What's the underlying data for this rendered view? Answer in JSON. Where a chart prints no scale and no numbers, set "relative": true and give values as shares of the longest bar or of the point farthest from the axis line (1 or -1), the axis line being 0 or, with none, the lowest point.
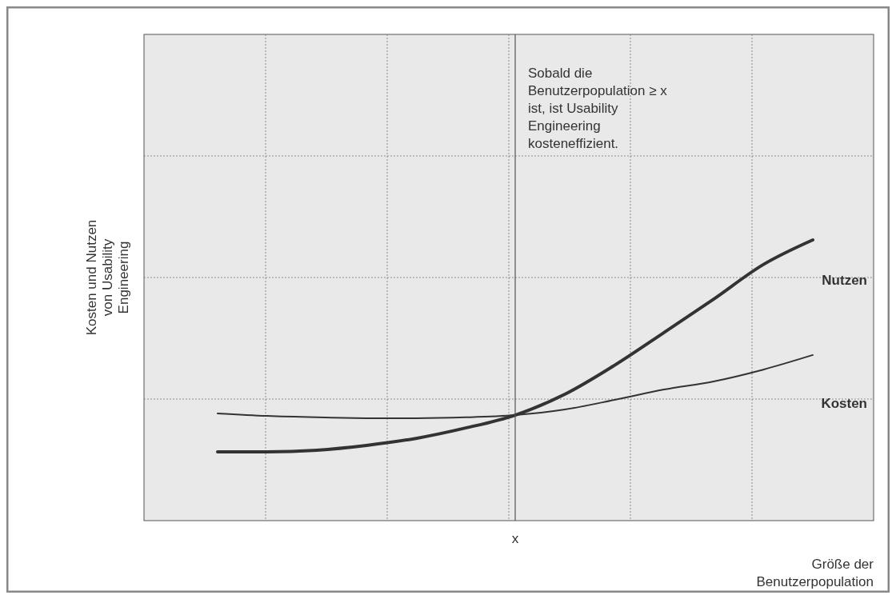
{
  "chart_data": {
    "type": "line",
    "relative": true,
    "xlabel": "Größe der Benutzerpopulation",
    "ylabel": "Kosten und Nutzen von Usability Engineering",
    "categories": [
      null,
      null,
      null,
      null,
      null,
      null,
      null,
      null,
      null,
      null,
      null,
      null,
      null
    ],
    "series": [
      {
        "name": "Nutzen",
        "color": "#333333",
        "values": [
          0.245,
          0.245,
          0.251,
          0.268,
          0.293,
          0.33,
          0.376,
          0.45,
          0.553,
          0.67,
          0.789,
          0.912,
          1
        ]
      },
      {
        "name": "Kosten",
        "color": "#333333",
        "values": [
          0.382,
          0.373,
          0.368,
          0.365,
          0.365,
          0.368,
          0.376,
          0.396,
          0.43,
          0.467,
          0.496,
          0.538,
          0.59
        ]
      }
    ],
    "annotations": [
      "Sobald die Benutzerpopulation ≥ x ist, ist Usability Engineering kosteneffizient.",
      "x"
    ],
    "grid": true,
    "legend": false,
    "marker": "none",
    "line_style": "solid"
  }
}
